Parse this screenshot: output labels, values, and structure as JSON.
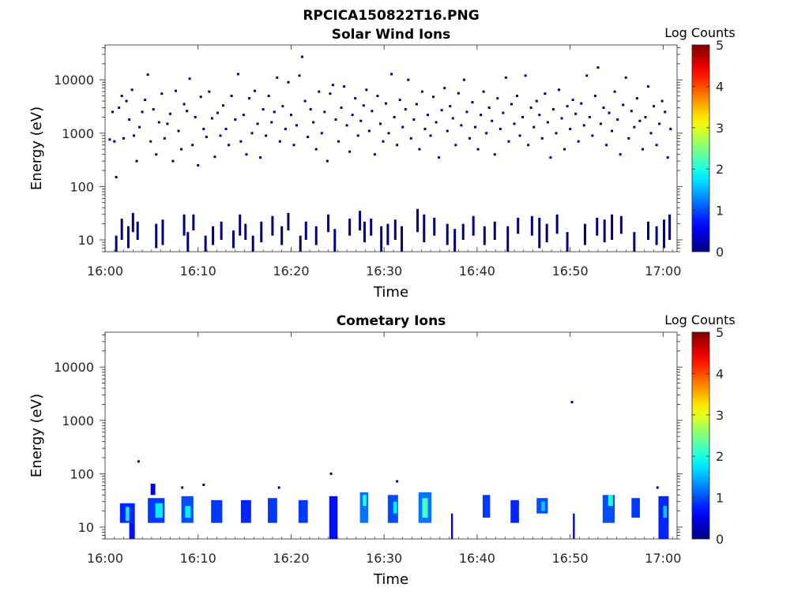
{
  "figure_title": "RPCICA150822T16.PNG",
  "chart_data": [
    {
      "type": "heatmap",
      "title": "Solar Wind Ions",
      "xlabel": "Time",
      "ylabel": "Energy (eV)",
      "x_ticks": [
        "16:00",
        "16:10",
        "16:20",
        "16:30",
        "16:40",
        "16:50",
        "17:00"
      ],
      "x_range_minutes": [
        0,
        61.5
      ],
      "y_scale": "log",
      "y_ticks": [
        "10",
        "100",
        "1000",
        "10000"
      ],
      "y_range": [
        6,
        45000
      ],
      "colorbar": {
        "label": "Log Counts",
        "ticks": [
          "0",
          "1",
          "2",
          "3",
          "4",
          "5"
        ],
        "range": [
          0,
          5
        ],
        "colormap": "jet"
      },
      "description_of_values": "Sparse single-count (log≈0) pixels scattered across 50 eV–30 keV; denser low-energy (~10–40 eV) clusters near 16:02, 16:09, 16:14, 16:27, 16:29, 16:34, 16:42, 16:48, 16:54, 17:00",
      "points": [
        [
          0.5,
          760
        ],
        [
          0.8,
          2500
        ],
        [
          1.0,
          700
        ],
        [
          1.2,
          150
        ],
        [
          1.5,
          3000
        ],
        [
          1.8,
          5000
        ],
        [
          2.0,
          800
        ],
        [
          2.3,
          4000
        ],
        [
          2.6,
          1800
        ],
        [
          2.9,
          6500
        ],
        [
          3.1,
          900
        ],
        [
          3.4,
          300
        ],
        [
          3.7,
          1300
        ],
        [
          4.0,
          2500
        ],
        [
          4.3,
          4200
        ],
        [
          4.6,
          12500
        ],
        [
          4.9,
          700
        ],
        [
          5.2,
          2800
        ],
        [
          5.5,
          400
        ],
        [
          5.8,
          1600
        ],
        [
          6.1,
          5500
        ],
        [
          6.4,
          800
        ],
        [
          6.7,
          1500
        ],
        [
          7.0,
          2300
        ],
        [
          7.3,
          300
        ],
        [
          7.6,
          6200
        ],
        [
          7.9,
          1100
        ],
        [
          8.2,
          500
        ],
        [
          8.5,
          3500
        ],
        [
          8.8,
          2600
        ],
        [
          9.1,
          10500
        ],
        [
          9.4,
          600
        ],
        [
          9.7,
          2000
        ],
        [
          10.0,
          250
        ],
        [
          10.3,
          4800
        ],
        [
          10.6,
          1200
        ],
        [
          10.9,
          850
        ],
        [
          11.2,
          6000
        ],
        [
          11.5,
          1900
        ],
        [
          11.8,
          360
        ],
        [
          12.1,
          2400
        ],
        [
          12.4,
          900
        ],
        [
          12.7,
          3300
        ],
        [
          13.0,
          1200
        ],
        [
          13.3,
          600
        ],
        [
          13.6,
          5000
        ],
        [
          14.0,
          1800
        ],
        [
          14.3,
          12800
        ],
        [
          14.6,
          700
        ],
        [
          14.9,
          2200
        ],
        [
          15.2,
          400
        ],
        [
          15.5,
          4500
        ],
        [
          15.8,
          1000
        ],
        [
          16.1,
          6200
        ],
        [
          16.4,
          1500
        ],
        [
          16.7,
          350
        ],
        [
          17.0,
          2800
        ],
        [
          17.3,
          900
        ],
        [
          17.6,
          5000
        ],
        [
          17.9,
          1600
        ],
        [
          18.2,
          2500
        ],
        [
          18.5,
          11000
        ],
        [
          18.8,
          700
        ],
        [
          19.1,
          3200
        ],
        [
          19.4,
          1200
        ],
        [
          19.7,
          9000
        ],
        [
          20.0,
          2200
        ],
        [
          20.3,
          600
        ],
        [
          20.6,
          1400
        ],
        [
          20.9,
          12000
        ],
        [
          21.2,
          27000
        ],
        [
          21.5,
          4000
        ],
        [
          21.8,
          850
        ],
        [
          22.1,
          2800
        ],
        [
          22.4,
          1600
        ],
        [
          22.7,
          500
        ],
        [
          23.0,
          6000
        ],
        [
          23.3,
          1000
        ],
        [
          23.6,
          2500
        ],
        [
          23.9,
          300
        ],
        [
          24.2,
          5500
        ],
        [
          24.5,
          8000
        ],
        [
          24.8,
          1800
        ],
        [
          25.1,
          700
        ],
        [
          25.4,
          3000
        ],
        [
          25.7,
          7500
        ],
        [
          26.0,
          1400
        ],
        [
          26.3,
          450
        ],
        [
          26.6,
          2200
        ],
        [
          26.9,
          4500
        ],
        [
          27.2,
          900
        ],
        [
          27.5,
          1700
        ],
        [
          27.8,
          3300
        ],
        [
          28.1,
          6500
        ],
        [
          28.4,
          1100
        ],
        [
          28.7,
          2600
        ],
        [
          29.0,
          400
        ],
        [
          29.3,
          5000
        ],
        [
          29.6,
          1500
        ],
        [
          29.9,
          700
        ],
        [
          30.2,
          3600
        ],
        [
          30.5,
          1000
        ],
        [
          30.8,
          12800
        ],
        [
          31.1,
          2000
        ],
        [
          31.4,
          600
        ],
        [
          31.7,
          4200
        ],
        [
          32.0,
          1300
        ],
        [
          32.3,
          2800
        ],
        [
          32.6,
          10000
        ],
        [
          32.9,
          800
        ],
        [
          33.2,
          1800
        ],
        [
          33.5,
          3500
        ],
        [
          33.8,
          500
        ],
        [
          34.1,
          6000
        ],
        [
          34.4,
          1200
        ],
        [
          34.7,
          2200
        ],
        [
          35.0,
          900
        ],
        [
          35.3,
          4800
        ],
        [
          35.6,
          1600
        ],
        [
          35.9,
          350
        ],
        [
          36.2,
          2700
        ],
        [
          36.5,
          7000
        ],
        [
          36.8,
          1100
        ],
        [
          37.1,
          3200
        ],
        [
          37.4,
          1900
        ],
        [
          37.7,
          600
        ],
        [
          38.0,
          5600
        ],
        [
          38.3,
          1400
        ],
        [
          38.6,
          10000
        ],
        [
          38.9,
          2500
        ],
        [
          39.2,
          800
        ],
        [
          39.5,
          3800
        ],
        [
          39.8,
          1300
        ],
        [
          40.1,
          500
        ],
        [
          40.4,
          2200
        ],
        [
          40.7,
          6000
        ],
        [
          41.0,
          1000
        ],
        [
          41.3,
          3000
        ],
        [
          41.6,
          1700
        ],
        [
          41.9,
          400
        ],
        [
          42.2,
          4500
        ],
        [
          42.5,
          1200
        ],
        [
          42.8,
          2400
        ],
        [
          43.1,
          11000
        ],
        [
          43.4,
          700
        ],
        [
          43.7,
          3500
        ],
        [
          44.0,
          1500
        ],
        [
          44.3,
          5000
        ],
        [
          44.6,
          900
        ],
        [
          44.9,
          2000
        ],
        [
          45.2,
          12000
        ],
        [
          45.5,
          600
        ],
        [
          45.8,
          3000
        ],
        [
          46.1,
          1300
        ],
        [
          46.4,
          4000
        ],
        [
          46.7,
          2200
        ],
        [
          47.0,
          800
        ],
        [
          47.3,
          5500
        ],
        [
          47.6,
          1600
        ],
        [
          47.9,
          350
        ],
        [
          48.2,
          2800
        ],
        [
          48.5,
          1000
        ],
        [
          48.8,
          6500
        ],
        [
          49.1,
          1900
        ],
        [
          49.4,
          500
        ],
        [
          49.7,
          3200
        ],
        [
          50.0,
          1200
        ],
        [
          50.3,
          4200
        ],
        [
          50.6,
          2300
        ],
        [
          50.9,
          700
        ],
        [
          51.2,
          3600
        ],
        [
          51.5,
          1400
        ],
        [
          51.8,
          12000
        ],
        [
          52.1,
          2000
        ],
        [
          52.4,
          900
        ],
        [
          52.7,
          5000
        ],
        [
          53.0,
          17000
        ],
        [
          53.3,
          1500
        ],
        [
          53.6,
          3000
        ],
        [
          53.9,
          600
        ],
        [
          54.2,
          2400
        ],
        [
          54.5,
          1100
        ],
        [
          54.8,
          6000
        ],
        [
          55.1,
          1800
        ],
        [
          55.4,
          400
        ],
        [
          55.7,
          3400
        ],
        [
          56.0,
          11000
        ],
        [
          56.3,
          800
        ],
        [
          56.6,
          2600
        ],
        [
          56.9,
          1300
        ],
        [
          57.2,
          4500
        ],
        [
          57.5,
          1700
        ],
        [
          57.8,
          500
        ],
        [
          58.1,
          2000
        ],
        [
          58.4,
          7500
        ],
        [
          58.7,
          1000
        ],
        [
          59.0,
          3200
        ],
        [
          59.3,
          600
        ],
        [
          59.6,
          1500
        ],
        [
          59.9,
          4000
        ],
        [
          60.2,
          2500
        ],
        [
          60.5,
          350
        ],
        [
          60.8,
          1200
        ]
      ],
      "low_energy_columns": [
        [
          1.2,
          6,
          12
        ],
        [
          1.8,
          10,
          25
        ],
        [
          2.5,
          7,
          18
        ],
        [
          3.0,
          14,
          32
        ],
        [
          3.5,
          10,
          22
        ],
        [
          5.5,
          7,
          20
        ],
        [
          6.2,
          8,
          24
        ],
        [
          8.5,
          12,
          30
        ],
        [
          8.9,
          6,
          14
        ],
        [
          9.5,
          15,
          30
        ],
        [
          10.8,
          6,
          12
        ],
        [
          11.6,
          8,
          18
        ],
        [
          12.5,
          10,
          22
        ],
        [
          13.8,
          7,
          15
        ],
        [
          14.5,
          12,
          30
        ],
        [
          15.1,
          10,
          20
        ],
        [
          15.9,
          6,
          12
        ],
        [
          16.8,
          9,
          22
        ],
        [
          18.0,
          12,
          28
        ],
        [
          19.0,
          8,
          18
        ],
        [
          19.7,
          15,
          32
        ],
        [
          21.0,
          6,
          12
        ],
        [
          21.6,
          10,
          22
        ],
        [
          22.7,
          8,
          18
        ],
        [
          24.0,
          14,
          30
        ],
        [
          24.7,
          6,
          16
        ],
        [
          26.3,
          12,
          25
        ],
        [
          27.4,
          15,
          35
        ],
        [
          27.9,
          9,
          22
        ],
        [
          28.6,
          12,
          25
        ],
        [
          29.7,
          6,
          18
        ],
        [
          30.4,
          8,
          20
        ],
        [
          31.2,
          10,
          24
        ],
        [
          31.9,
          6,
          18
        ],
        [
          33.6,
          14,
          38
        ],
        [
          34.3,
          9,
          30
        ],
        [
          35.4,
          12,
          26
        ],
        [
          36.8,
          8,
          20
        ],
        [
          37.6,
          6,
          16
        ],
        [
          38.5,
          10,
          20
        ],
        [
          39.6,
          12,
          28
        ],
        [
          40.8,
          8,
          18
        ],
        [
          41.9,
          10,
          22
        ],
        [
          43.3,
          6,
          18
        ],
        [
          44.4,
          13,
          26
        ],
        [
          45.9,
          12,
          28
        ],
        [
          46.7,
          7,
          26
        ],
        [
          47.5,
          9,
          20
        ],
        [
          48.6,
          13,
          30
        ],
        [
          49.7,
          6,
          14
        ],
        [
          51.6,
          8,
          20
        ],
        [
          52.9,
          12,
          26
        ],
        [
          53.7,
          9,
          24
        ],
        [
          54.5,
          10,
          30
        ],
        [
          55.5,
          13,
          28
        ],
        [
          56.9,
          6,
          14
        ],
        [
          58.4,
          10,
          22
        ],
        [
          59.3,
          8,
          18
        ],
        [
          60.1,
          7,
          24
        ],
        [
          60.7,
          10,
          30
        ]
      ]
    },
    {
      "type": "heatmap",
      "title": "Cometary Ions",
      "xlabel": "Time",
      "ylabel": "Energy (eV)",
      "x_ticks": [
        "16:00",
        "16:10",
        "16:20",
        "16:30",
        "16:40",
        "16:50",
        "17:00"
      ],
      "x_range_minutes": [
        0,
        61.5
      ],
      "y_scale": "log",
      "y_ticks": [
        "10",
        "100",
        "1000",
        "10000"
      ],
      "y_range": [
        6,
        45000
      ],
      "colorbar": {
        "label": "Log Counts",
        "ticks": [
          "0",
          "1",
          "2",
          "3",
          "4",
          "5"
        ],
        "range": [
          0,
          5
        ],
        "colormap": "jet"
      },
      "description_of_values": "Periodic bursts of cometary ions at ~10–35 eV, peaks ~log 2 at 16:05, 16:28, 16:34, 16:54; isolated points at ~170 eV (16:04), ~100 eV (16:24), ~2200 eV (16:50)",
      "blocks": [
        [
          1.6,
          3.2,
          12,
          28,
          0.8
        ],
        [
          2.2,
          2.6,
          13,
          24,
          1.8
        ],
        [
          2.6,
          3.2,
          6,
          12,
          0.7
        ],
        [
          4.6,
          6.4,
          12,
          35,
          0.9
        ],
        [
          5.4,
          6.2,
          15,
          28,
          1.8
        ],
        [
          4.9,
          5.4,
          40,
          65,
          0.6
        ],
        [
          8.2,
          9.5,
          12,
          38,
          1.0
        ],
        [
          8.6,
          9.2,
          15,
          25,
          1.8
        ],
        [
          11.4,
          12.6,
          12,
          32,
          0.9
        ],
        [
          14.6,
          15.7,
          12,
          32,
          0.8
        ],
        [
          17.5,
          18.5,
          12,
          35,
          0.9
        ],
        [
          20.8,
          21.8,
          12,
          32,
          0.9
        ],
        [
          24.1,
          25.0,
          6,
          38,
          0.7
        ],
        [
          27.4,
          28.3,
          12,
          45,
          1.2
        ],
        [
          27.7,
          28.1,
          25,
          40,
          2.0
        ],
        [
          30.4,
          31.5,
          12,
          40,
          1.0
        ],
        [
          31.0,
          31.4,
          18,
          30,
          1.8
        ],
        [
          33.7,
          35.1,
          12,
          45,
          1.2
        ],
        [
          34.1,
          34.7,
          15,
          35,
          2.2
        ],
        [
          37.2,
          37.4,
          6,
          18,
          0.5
        ],
        [
          40.6,
          41.4,
          15,
          40,
          0.9
        ],
        [
          43.6,
          44.5,
          12,
          32,
          0.8
        ],
        [
          46.4,
          47.6,
          18,
          35,
          1.0
        ],
        [
          46.9,
          47.3,
          20,
          30,
          1.6
        ],
        [
          50.3,
          50.5,
          6,
          18,
          0.5
        ],
        [
          53.5,
          54.8,
          12,
          40,
          1.0
        ],
        [
          54.1,
          54.6,
          25,
          40,
          2.0
        ],
        [
          56.6,
          57.5,
          15,
          35,
          0.9
        ],
        [
          59.5,
          60.6,
          6,
          38,
          0.8
        ],
        [
          60.0,
          60.4,
          15,
          25,
          1.6
        ]
      ],
      "points": [
        [
          3.6,
          170
        ],
        [
          24.3,
          100
        ],
        [
          31.4,
          72
        ],
        [
          50.2,
          2200
        ],
        [
          8.3,
          55
        ],
        [
          59.4,
          55
        ],
        [
          10.6,
          62
        ],
        [
          18.7,
          55
        ]
      ]
    }
  ]
}
